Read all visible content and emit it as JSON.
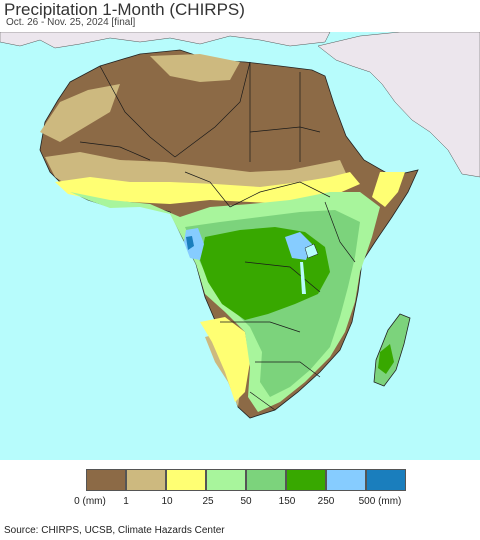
{
  "title": "Precipitation 1-Month (CHIRPS)",
  "subtitle": "Oct. 26 - Nov. 25, 2024 [final]",
  "legend": {
    "colors": [
      "#8c6a46",
      "#cdb97f",
      "#ffff73",
      "#a8f59c",
      "#7cd37c",
      "#38a800",
      "#86ccff",
      "#1a7ebd"
    ],
    "labels": [
      "0 (mm)",
      "1",
      "10",
      "25",
      "50",
      "150",
      "250",
      "500 (mm)"
    ]
  },
  "source": "Source: CHIRPS, UCSB, Climate Hazards Center",
  "map_colors": {
    "ocean": "#b7fcfc",
    "land_outside": "#ece6ed",
    "borders": "#1a1a1a"
  }
}
